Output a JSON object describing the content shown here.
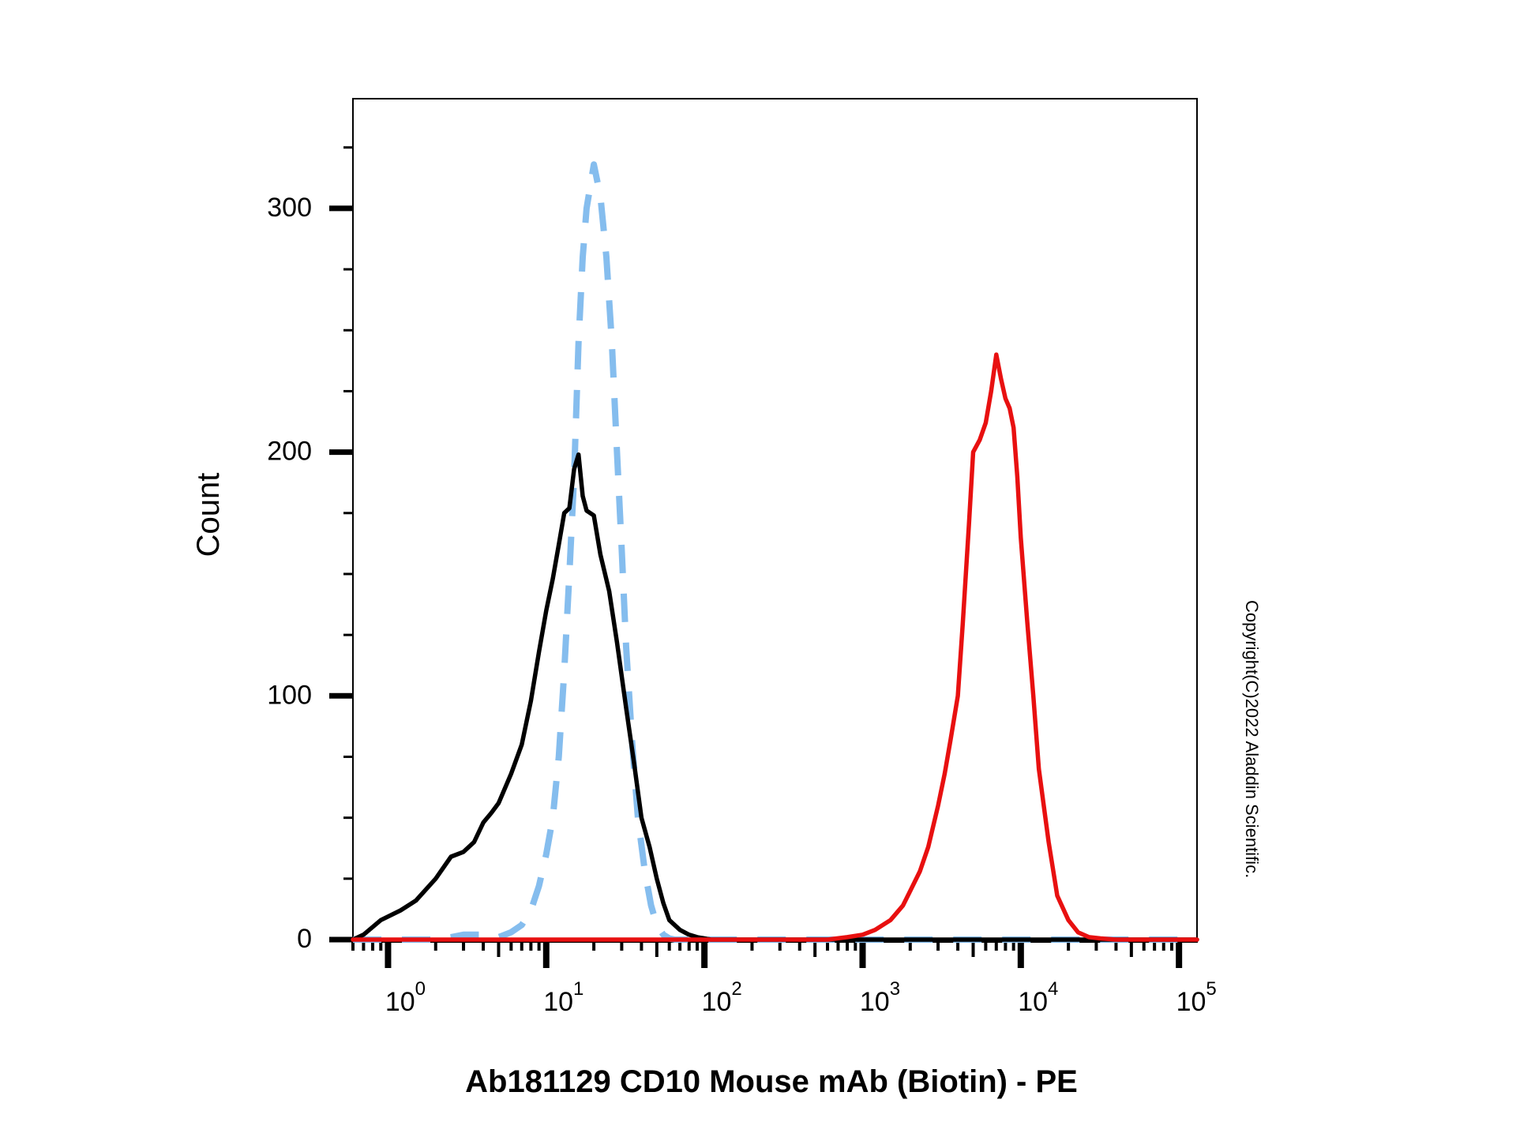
{
  "chart_data": {
    "type": "line",
    "title": "",
    "xlabel": "Ab181129 CD10 Mouse mAb (Biotin) - PE",
    "ylabel": "Count",
    "x_scale": "log",
    "xlim": [
      0.6,
      130000
    ],
    "ylim": [
      0,
      345
    ],
    "y_ticks": [
      0,
      100,
      200,
      300
    ],
    "y_minor_step": 25,
    "x_ticks": [
      {
        "value": 1,
        "base": "10",
        "exp": "0"
      },
      {
        "value": 10,
        "base": "10",
        "exp": "1"
      },
      {
        "value": 100,
        "base": "10",
        "exp": "2"
      },
      {
        "value": 1000,
        "base": "10",
        "exp": "3"
      },
      {
        "value": 10000,
        "base": "10",
        "exp": "4"
      },
      {
        "value": 100000,
        "base": "10",
        "exp": "5"
      }
    ],
    "grid": false,
    "legend": "none",
    "annotation": "Copyright(C)2022 Aladdin Scientific.",
    "series": [
      {
        "color": "#000000",
        "style": "solid",
        "x": [
          0.6,
          0.7,
          0.9,
          1.2,
          1.5,
          2.0,
          2.5,
          3.0,
          3.5,
          4.0,
          4.5,
          5.0,
          6.0,
          7.0,
          8.0,
          9.0,
          10.0,
          11.0,
          12.0,
          13.0,
          14.0,
          15.0,
          16.0,
          17.0,
          18.0,
          20.0,
          22.0,
          25.0,
          28.0,
          32.0,
          36.0,
          40.0,
          45.0,
          50.0,
          55.0,
          60.0,
          70.0,
          80.0,
          90.0,
          100.0,
          110.0,
          130.0,
          160.0,
          300.0,
          1000.0,
          10000.0,
          130000.0
        ],
        "y": [
          0,
          2,
          8,
          12,
          16,
          25,
          34,
          36,
          40,
          48,
          52,
          56,
          68,
          80,
          98,
          118,
          135,
          148,
          162,
          175,
          177,
          193,
          199,
          182,
          176,
          174,
          158,
          143,
          122,
          95,
          72,
          50,
          38,
          25,
          15,
          8,
          4,
          2,
          1,
          0.5,
          0,
          0,
          0,
          0,
          0,
          0,
          0
        ]
      },
      {
        "color": "#85BDEE",
        "style": "dashed",
        "x": [
          0.6,
          1.0,
          2.0,
          2.5,
          3.0,
          4.0,
          5.0,
          6.0,
          7.0,
          8.0,
          9.0,
          10.0,
          11.0,
          12.0,
          13.0,
          14.0,
          15.0,
          16.0,
          17.0,
          18.0,
          20.0,
          22.0,
          24.0,
          26.0,
          28.0,
          30.0,
          32.0,
          35.0,
          38.0,
          42.0,
          46.0,
          50.0,
          55.0,
          60.0,
          65.0,
          70.0,
          80.0,
          90.0,
          100.0,
          120.0,
          140.0,
          200.0,
          1000.0,
          10000.0,
          130000.0
        ],
        "y": [
          0,
          0,
          0,
          1,
          2,
          2,
          1,
          3,
          6,
          12,
          22,
          35,
          50,
          75,
          110,
          150,
          190,
          245,
          280,
          300,
          318,
          305,
          280,
          245,
          200,
          160,
          120,
          80,
          50,
          28,
          14,
          6,
          2,
          0.5,
          0,
          0,
          0,
          0,
          0,
          0,
          0,
          0,
          0,
          0,
          0
        ]
      },
      {
        "color": "#E81010",
        "style": "solid",
        "x": [
          0.6,
          10.0,
          100.0,
          450.0,
          600.0,
          800.0,
          1000.0,
          1200.0,
          1500.0,
          1800.0,
          2000.0,
          2300.0,
          2600.0,
          3000.0,
          3300.0,
          3600.0,
          4000.0,
          4300.0,
          4700.0,
          5000.0,
          5500.0,
          6000.0,
          6500.0,
          7000.0,
          7500.0,
          8000.0,
          8500.0,
          9000.0,
          9500.0,
          10000.0,
          11000.0,
          12000.0,
          13000.0,
          15000.0,
          17000.0,
          20000.0,
          23000.0,
          27000.0,
          32000.0,
          40000.0,
          50000.0,
          130000.0
        ],
        "y": [
          0,
          0,
          0,
          0,
          0,
          1,
          2,
          4,
          8,
          14,
          20,
          28,
          38,
          55,
          68,
          82,
          100,
          130,
          170,
          200,
          205,
          212,
          225,
          240,
          230,
          222,
          218,
          210,
          190,
          165,
          130,
          100,
          70,
          40,
          18,
          8,
          3,
          1,
          0.5,
          0,
          0,
          0
        ]
      }
    ]
  }
}
